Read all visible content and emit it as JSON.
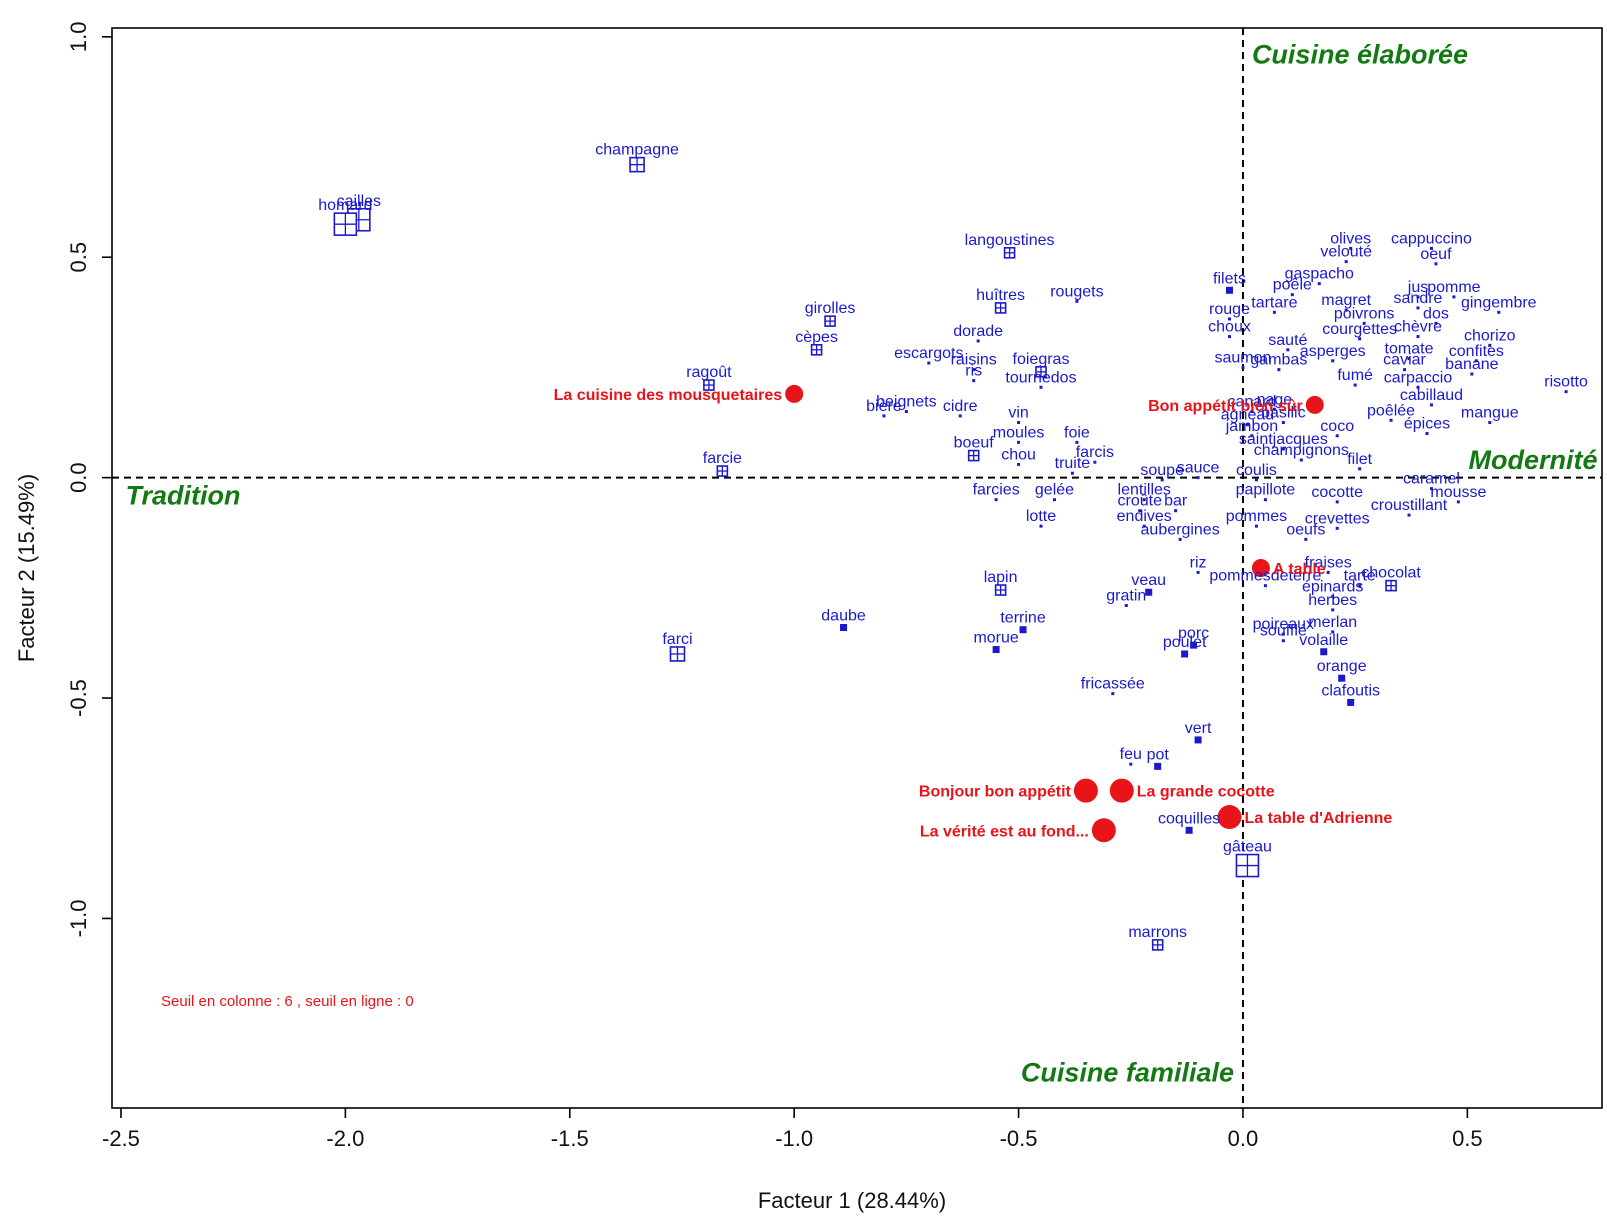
{
  "chart_data": {
    "type": "scatter",
    "xlabel": "Facteur 1 (28.44%)",
    "ylabel": "Facteur 2 (15.49%)",
    "xlim": [
      -2.52,
      0.8
    ],
    "ylim": [
      -1.43,
      1.02
    ],
    "x_ticks": [
      {
        "value": -2.5,
        "label": "-2.5"
      },
      {
        "value": -2.0,
        "label": "-2.0"
      },
      {
        "value": -1.5,
        "label": "-1.5"
      },
      {
        "value": -1.0,
        "label": "-1.0"
      },
      {
        "value": -0.5,
        "label": "-0.5"
      },
      {
        "value": 0.0,
        "label": "0.0"
      },
      {
        "value": 0.5,
        "label": "0.5"
      }
    ],
    "y_ticks": [
      {
        "value": -1.0,
        "label": "-1.0"
      },
      {
        "value": -0.5,
        "label": "-0.5"
      },
      {
        "value": 0.0,
        "label": "0.0"
      },
      {
        "value": 0.5,
        "label": "0.5"
      },
      {
        "value": 1.0,
        "label": "1.0"
      }
    ],
    "reference_lines": {
      "x": 0,
      "y": 0,
      "style": "dashed"
    },
    "annotations": [
      {
        "text": "Cuisine élaborée",
        "x": 0.02,
        "y": 0.96,
        "anchor": "start"
      },
      {
        "text": "Modernité",
        "x": 0.79,
        "y": 0.04,
        "anchor": "end"
      },
      {
        "text": "Tradition",
        "x": -2.49,
        "y": -0.04,
        "anchor": "start"
      },
      {
        "text": "Cuisine familiale",
        "x": -0.02,
        "y": -1.35,
        "anchor": "end"
      }
    ],
    "note": "Seuil en colonne : 6 , seuil en ligne : 0",
    "series": [
      {
        "name": "restaurants",
        "color": "#e8141a",
        "points": [
          {
            "label": "La cuisine des mousquetaires",
            "x": -1.0,
            "y": 0.19,
            "size": "medium",
            "label_side": "left"
          },
          {
            "label": "Bon appétit bien sûr",
            "x": 0.16,
            "y": 0.165,
            "size": "medium",
            "label_side": "left"
          },
          {
            "label": "A table",
            "x": 0.04,
            "y": -0.205,
            "size": "medium",
            "label_side": "right"
          },
          {
            "label": "Bonjour bon appétit",
            "x": -0.35,
            "y": -0.71,
            "size": "large",
            "label_side": "left"
          },
          {
            "label": "La grande cocotte",
            "x": -0.27,
            "y": -0.71,
            "size": "large",
            "label_side": "right"
          },
          {
            "label": "La vérité est au fond...",
            "x": -0.31,
            "y": -0.8,
            "size": "large",
            "label_side": "left"
          },
          {
            "label": "La table d'Adrienne",
            "x": -0.03,
            "y": -0.77,
            "size": "large",
            "label_side": "right"
          }
        ]
      },
      {
        "name": "words",
        "color": "#1a1acc",
        "points": [
          {
            "label": "champagne",
            "x": -1.35,
            "y": 0.71,
            "marker": "grid-medium"
          },
          {
            "label": "cailles",
            "x": -1.97,
            "y": 0.585,
            "marker": "grid-large"
          },
          {
            "label": "homard",
            "x": -2.0,
            "y": 0.575,
            "marker": "grid-large"
          },
          {
            "label": "langoustines",
            "x": -0.52,
            "y": 0.51,
            "marker": "grid-small"
          },
          {
            "label": "rougets",
            "x": -0.37,
            "y": 0.4,
            "marker": "dot"
          },
          {
            "label": "huîtres",
            "x": -0.54,
            "y": 0.385,
            "marker": "grid-small"
          },
          {
            "label": "girolles",
            "x": -0.92,
            "y": 0.355,
            "marker": "grid-small"
          },
          {
            "label": "dorade",
            "x": -0.59,
            "y": 0.31,
            "marker": "dot"
          },
          {
            "label": "cèpes",
            "x": -0.95,
            "y": 0.29,
            "marker": "grid-small"
          },
          {
            "label": "escargots",
            "x": -0.7,
            "y": 0.26,
            "marker": "dot"
          },
          {
            "label": "raisins",
            "x": -0.6,
            "y": 0.245,
            "marker": "dot"
          },
          {
            "label": "foiegras",
            "x": -0.45,
            "y": 0.24,
            "marker": "grid-small"
          },
          {
            "label": "ragoût",
            "x": -1.19,
            "y": 0.21,
            "marker": "grid-small"
          },
          {
            "label": "ris",
            "x": -0.6,
            "y": 0.22,
            "marker": "dot"
          },
          {
            "label": "tournedos",
            "x": -0.45,
            "y": 0.205,
            "marker": "dot"
          },
          {
            "label": "beignets",
            "x": -0.75,
            "y": 0.15,
            "marker": "dot"
          },
          {
            "label": "bière",
            "x": -0.8,
            "y": 0.14,
            "marker": "dot"
          },
          {
            "label": "cidre",
            "x": -0.63,
            "y": 0.14,
            "marker": "dot"
          },
          {
            "label": "vin",
            "x": -0.5,
            "y": 0.125,
            "marker": "dot"
          },
          {
            "label": "boeuf",
            "x": -0.6,
            "y": 0.05,
            "marker": "grid-small"
          },
          {
            "label": "moules",
            "x": -0.5,
            "y": 0.08,
            "marker": "dot"
          },
          {
            "label": "foie",
            "x": -0.37,
            "y": 0.08,
            "marker": "dot"
          },
          {
            "label": "farcie",
            "x": -1.16,
            "y": 0.015,
            "marker": "grid-small"
          },
          {
            "label": "farcis",
            "x": -0.33,
            "y": 0.035,
            "marker": "dot"
          },
          {
            "label": "chou",
            "x": -0.5,
            "y": 0.03,
            "marker": "dot"
          },
          {
            "label": "truite",
            "x": -0.38,
            "y": 0.01,
            "marker": "dot"
          },
          {
            "label": "farcies",
            "x": -0.55,
            "y": -0.05,
            "marker": "dot"
          },
          {
            "label": "gelée",
            "x": -0.42,
            "y": -0.05,
            "marker": "dot"
          },
          {
            "label": "lentilles",
            "x": -0.22,
            "y": -0.05,
            "marker": "dot"
          },
          {
            "label": "soupe",
            "x": -0.18,
            "y": -0.005,
            "marker": "dot"
          },
          {
            "label": "sauce",
            "x": -0.1,
            "y": 0.0,
            "marker": "dot"
          },
          {
            "label": "coulis",
            "x": 0.03,
            "y": -0.005,
            "marker": "dot"
          },
          {
            "label": "croûte",
            "x": -0.23,
            "y": -0.075,
            "marker": "dot"
          },
          {
            "label": "bar",
            "x": -0.15,
            "y": -0.075,
            "marker": "dot"
          },
          {
            "label": "papillote",
            "x": 0.05,
            "y": -0.05,
            "marker": "dot"
          },
          {
            "label": "lotte",
            "x": -0.45,
            "y": -0.11,
            "marker": "dot"
          },
          {
            "label": "endives",
            "x": -0.22,
            "y": -0.11,
            "marker": "dot"
          },
          {
            "label": "pommes",
            "x": 0.03,
            "y": -0.11,
            "marker": "dot"
          },
          {
            "label": "aubergines",
            "x": -0.14,
            "y": -0.14,
            "marker": "dot"
          },
          {
            "label": "lapin",
            "x": -0.54,
            "y": -0.255,
            "marker": "grid-small"
          },
          {
            "label": "daube",
            "x": -0.89,
            "y": -0.34,
            "marker": "small-square"
          },
          {
            "label": "terrine",
            "x": -0.49,
            "y": -0.345,
            "marker": "small-square"
          },
          {
            "label": "morue",
            "x": -0.55,
            "y": -0.39,
            "marker": "small-square"
          },
          {
            "label": "farci",
            "x": -1.26,
            "y": -0.4,
            "marker": "grid-medium"
          },
          {
            "label": "gratin",
            "x": -0.26,
            "y": -0.29,
            "marker": "dot"
          },
          {
            "label": "veau",
            "x": -0.21,
            "y": -0.26,
            "marker": "small-square"
          },
          {
            "label": "riz",
            "x": -0.1,
            "y": -0.215,
            "marker": "dot"
          },
          {
            "label": "pommesdeterre",
            "x": 0.05,
            "y": -0.245,
            "marker": "dot"
          },
          {
            "label": "porc",
            "x": -0.11,
            "y": -0.38,
            "marker": "small-square"
          },
          {
            "label": "poulet",
            "x": -0.13,
            "y": -0.4,
            "marker": "small-square"
          },
          {
            "label": "poireaux",
            "x": 0.09,
            "y": -0.355,
            "marker": "dot"
          },
          {
            "label": "soufflé",
            "x": 0.09,
            "y": -0.37,
            "marker": "dot"
          },
          {
            "label": "fricassée",
            "x": -0.29,
            "y": -0.49,
            "marker": "dot"
          },
          {
            "label": "vert",
            "x": -0.1,
            "y": -0.595,
            "marker": "small-square"
          },
          {
            "label": "feu",
            "x": -0.25,
            "y": -0.65,
            "marker": "dot"
          },
          {
            "label": "pot",
            "x": -0.19,
            "y": -0.655,
            "marker": "small-square"
          },
          {
            "label": "coquilles",
            "x": -0.12,
            "y": -0.8,
            "marker": "small-square"
          },
          {
            "label": "gâteau",
            "x": 0.01,
            "y": -0.88,
            "marker": "grid-large"
          },
          {
            "label": "marrons",
            "x": -0.19,
            "y": -1.06,
            "marker": "grid-small"
          },
          {
            "label": "filets",
            "x": -0.03,
            "y": 0.425,
            "marker": "small-square"
          },
          {
            "label": "rouge",
            "x": -0.03,
            "y": 0.36,
            "marker": "dot"
          },
          {
            "label": "choux",
            "x": -0.03,
            "y": 0.32,
            "marker": "dot"
          },
          {
            "label": "saumon",
            "x": 0.0,
            "y": 0.25,
            "marker": "dot"
          },
          {
            "label": "canard",
            "x": 0.02,
            "y": 0.15,
            "marker": "dot"
          },
          {
            "label": "agneau",
            "x": 0.01,
            "y": 0.12,
            "marker": "dot"
          },
          {
            "label": "jambon",
            "x": 0.02,
            "y": 0.095,
            "marker": "dot"
          },
          {
            "label": "saintjacques",
            "x": 0.09,
            "y": 0.065,
            "marker": "dot"
          },
          {
            "label": "champignons",
            "x": 0.13,
            "y": 0.04,
            "marker": "dot"
          },
          {
            "label": "olives",
            "x": 0.24,
            "y": 0.52,
            "marker": "dot"
          },
          {
            "label": "cappuccino",
            "x": 0.42,
            "y": 0.52,
            "marker": "dot"
          },
          {
            "label": "velouté",
            "x": 0.23,
            "y": 0.49,
            "marker": "dot"
          },
          {
            "label": "oeuf",
            "x": 0.43,
            "y": 0.485,
            "marker": "dot"
          },
          {
            "label": "gaspacho",
            "x": 0.17,
            "y": 0.44,
            "marker": "dot"
          },
          {
            "label": "poêle",
            "x": 0.11,
            "y": 0.415,
            "marker": "dot"
          },
          {
            "label": "jus",
            "x": 0.39,
            "y": 0.41,
            "marker": "dot"
          },
          {
            "label": "pomme",
            "x": 0.47,
            "y": 0.41,
            "marker": "dot"
          },
          {
            "label": "magret",
            "x": 0.23,
            "y": 0.38,
            "marker": "dot"
          },
          {
            "label": "tartare",
            "x": 0.07,
            "y": 0.375,
            "marker": "dot"
          },
          {
            "label": "sandre",
            "x": 0.39,
            "y": 0.385,
            "marker": "dot"
          },
          {
            "label": "gingembre",
            "x": 0.57,
            "y": 0.375,
            "marker": "dot"
          },
          {
            "label": "poivrons",
            "x": 0.27,
            "y": 0.35,
            "marker": "dot"
          },
          {
            "label": "dos",
            "x": 0.43,
            "y": 0.35,
            "marker": "dot"
          },
          {
            "label": "courgettes",
            "x": 0.26,
            "y": 0.315,
            "marker": "dot"
          },
          {
            "label": "chèvre",
            "x": 0.39,
            "y": 0.32,
            "marker": "dot"
          },
          {
            "label": "chorizo",
            "x": 0.55,
            "y": 0.3,
            "marker": "dot"
          },
          {
            "label": "sauté",
            "x": 0.1,
            "y": 0.29,
            "marker": "dot"
          },
          {
            "label": "gambas",
            "x": 0.08,
            "y": 0.245,
            "marker": "dot"
          },
          {
            "label": "asperges",
            "x": 0.2,
            "y": 0.265,
            "marker": "dot"
          },
          {
            "label": "tomate",
            "x": 0.37,
            "y": 0.27,
            "marker": "dot"
          },
          {
            "label": "confites",
            "x": 0.52,
            "y": 0.265,
            "marker": "dot"
          },
          {
            "label": "caviar",
            "x": 0.36,
            "y": 0.245,
            "marker": "dot"
          },
          {
            "label": "banane",
            "x": 0.51,
            "y": 0.235,
            "marker": "dot"
          },
          {
            "label": "fumé",
            "x": 0.25,
            "y": 0.21,
            "marker": "dot"
          },
          {
            "label": "carpaccio",
            "x": 0.39,
            "y": 0.205,
            "marker": "dot"
          },
          {
            "label": "risotto",
            "x": 0.72,
            "y": 0.195,
            "marker": "dot"
          },
          {
            "label": "cabillaud",
            "x": 0.42,
            "y": 0.165,
            "marker": "dot"
          },
          {
            "label": "nage",
            "x": 0.07,
            "y": 0.155,
            "marker": "dot"
          },
          {
            "label": "basilic",
            "x": 0.09,
            "y": 0.125,
            "marker": "dot"
          },
          {
            "label": "poêlée",
            "x": 0.33,
            "y": 0.13,
            "marker": "dot"
          },
          {
            "label": "mangue",
            "x": 0.55,
            "y": 0.125,
            "marker": "dot"
          },
          {
            "label": "coco",
            "x": 0.21,
            "y": 0.095,
            "marker": "dot"
          },
          {
            "label": "épices",
            "x": 0.41,
            "y": 0.1,
            "marker": "dot"
          },
          {
            "label": "filet",
            "x": 0.26,
            "y": 0.02,
            "marker": "dot"
          },
          {
            "label": "caramel",
            "x": 0.42,
            "y": -0.025,
            "marker": "dot"
          },
          {
            "label": "cocotte",
            "x": 0.21,
            "y": -0.055,
            "marker": "dot"
          },
          {
            "label": "mousse",
            "x": 0.48,
            "y": -0.055,
            "marker": "dot"
          },
          {
            "label": "croustillant",
            "x": 0.37,
            "y": -0.085,
            "marker": "dot"
          },
          {
            "label": "crevettes",
            "x": 0.21,
            "y": -0.115,
            "marker": "dot"
          },
          {
            "label": "oeufs",
            "x": 0.14,
            "y": -0.14,
            "marker": "dot"
          },
          {
            "label": "fraises",
            "x": 0.19,
            "y": -0.215,
            "marker": "dot"
          },
          {
            "label": "tarte",
            "x": 0.26,
            "y": -0.245,
            "marker": "dot"
          },
          {
            "label": "chocolat",
            "x": 0.33,
            "y": -0.245,
            "marker": "grid-small"
          },
          {
            "label": "épinards",
            "x": 0.2,
            "y": -0.27,
            "marker": "dot"
          },
          {
            "label": "herbes",
            "x": 0.2,
            "y": -0.3,
            "marker": "dot"
          },
          {
            "label": "merlan",
            "x": 0.2,
            "y": -0.35,
            "marker": "dot"
          },
          {
            "label": "volaille",
            "x": 0.18,
            "y": -0.395,
            "marker": "small-square"
          },
          {
            "label": "orange",
            "x": 0.22,
            "y": -0.455,
            "marker": "small-square"
          },
          {
            "label": "clafoutis",
            "x": 0.24,
            "y": -0.51,
            "marker": "small-square"
          }
        ]
      }
    ]
  }
}
